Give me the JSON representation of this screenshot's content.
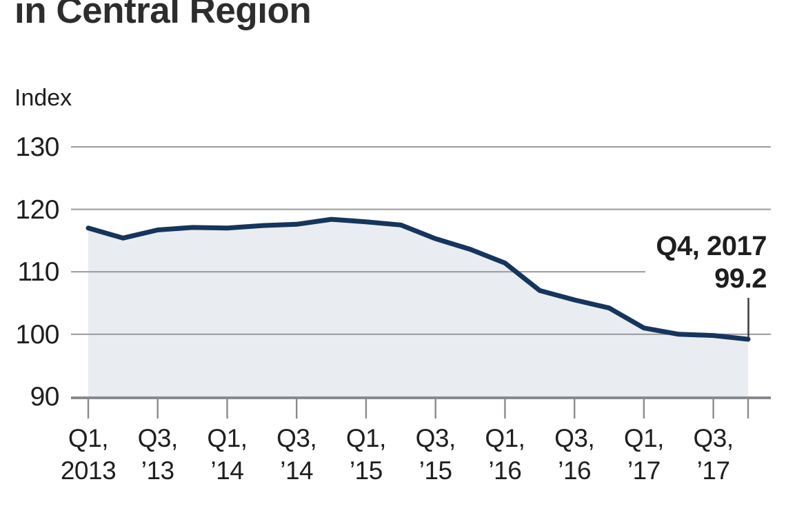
{
  "chart_data": {
    "type": "area",
    "title": "in Central Region",
    "ylabel": "Index",
    "x": [
      "Q1 2013",
      "Q2 2013",
      "Q3 2013",
      "Q4 2013",
      "Q1 2014",
      "Q2 2014",
      "Q3 2014",
      "Q4 2014",
      "Q1 2015",
      "Q2 2015",
      "Q3 2015",
      "Q4 2015",
      "Q1 2016",
      "Q2 2016",
      "Q3 2016",
      "Q4 2016",
      "Q1 2017",
      "Q2 2017",
      "Q3 2017",
      "Q4 2017"
    ],
    "values": [
      117.0,
      115.4,
      116.7,
      117.1,
      117.0,
      117.4,
      117.6,
      118.4,
      118.0,
      117.5,
      115.3,
      113.6,
      111.4,
      107.0,
      105.5,
      104.2,
      101.0,
      100.0,
      99.8,
      99.2
    ],
    "ylim": [
      90,
      130
    ],
    "yticks": [
      130,
      120,
      110,
      100,
      90
    ],
    "grid": true,
    "legend": "none",
    "xtick_labels": [
      {
        "q": 0,
        "line1": "Q1,",
        "line2": "2013"
      },
      {
        "q": 2,
        "line1": "Q3,",
        "line2": "’13"
      },
      {
        "q": 4,
        "line1": "Q1,",
        "line2": "’14"
      },
      {
        "q": 6,
        "line1": "Q3,",
        "line2": "’14"
      },
      {
        "q": 8,
        "line1": "Q1,",
        "line2": "’15"
      },
      {
        "q": 10,
        "line1": "Q3,",
        "line2": "’15"
      },
      {
        "q": 12,
        "line1": "Q1,",
        "line2": "’16"
      },
      {
        "q": 14,
        "line1": "Q3,",
        "line2": "’16"
      },
      {
        "q": 16,
        "line1": "Q1,",
        "line2": "’17"
      },
      {
        "q": 18,
        "line1": "Q3,",
        "line2": "’17"
      }
    ],
    "end_tick_q": 19,
    "annotation": {
      "line1": "Q4, 2017",
      "line2": "99.2",
      "q": 19,
      "value": 99.2
    },
    "colors": {
      "line": "#16355c",
      "fill": "#e9edf1",
      "grid": "#97999b",
      "axis": "#888b8e",
      "text": "#1e1e1e",
      "title": "#2d2d2d",
      "callout": "#3a3a3a"
    }
  }
}
